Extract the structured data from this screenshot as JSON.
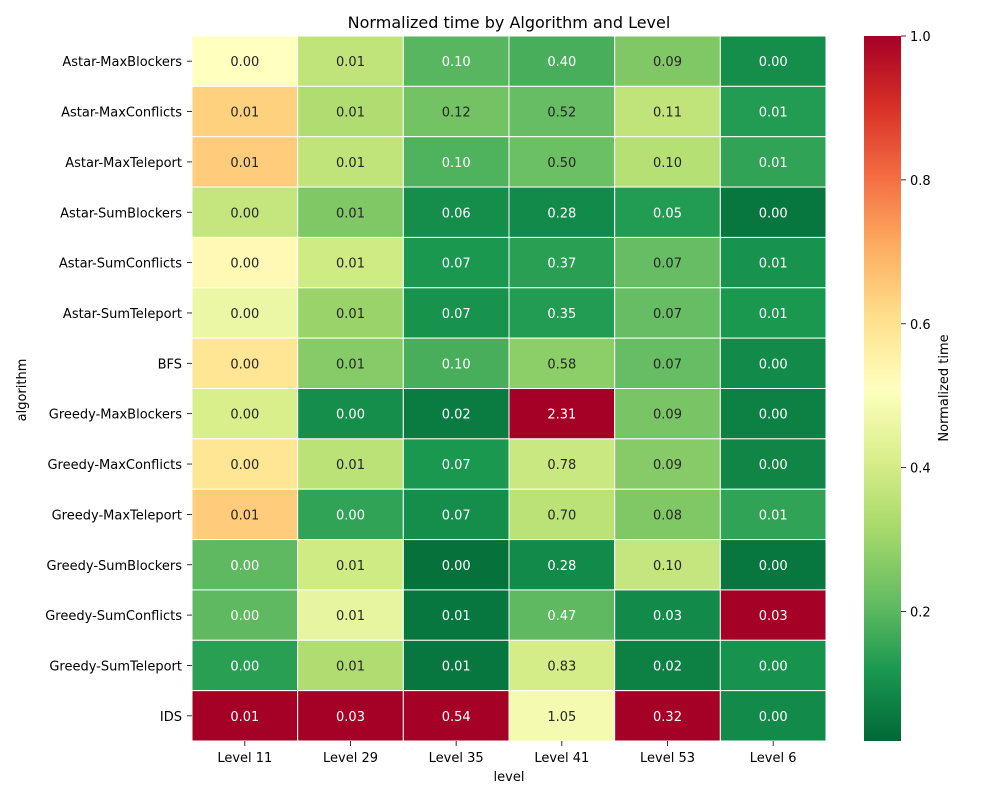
{
  "chart_data": {
    "type": "heatmap",
    "title": "Normalized time by Algorithm and Level",
    "xlabel": "level",
    "ylabel": "algorithm",
    "x_categories": [
      "Level 11",
      "Level 29",
      "Level 35",
      "Level 41",
      "Level 53",
      "Level 6"
    ],
    "y_categories": [
      "Astar-MaxBlockers",
      "Astar-MaxConflicts",
      "Astar-MaxTeleport",
      "Astar-SumBlockers",
      "Astar-SumConflicts",
      "Astar-SumTeleport",
      "BFS",
      "Greedy-MaxBlockers",
      "Greedy-MaxConflicts",
      "Greedy-MaxTeleport",
      "Greedy-SumBlockers",
      "Greedy-SumConflicts",
      "Greedy-SumTeleport",
      "IDS"
    ],
    "annotations": [
      [
        "0.00",
        "0.01",
        "0.10",
        "0.40",
        "0.09",
        "0.00"
      ],
      [
        "0.01",
        "0.01",
        "0.12",
        "0.52",
        "0.11",
        "0.01"
      ],
      [
        "0.01",
        "0.01",
        "0.10",
        "0.50",
        "0.10",
        "0.01"
      ],
      [
        "0.00",
        "0.01",
        "0.06",
        "0.28",
        "0.05",
        "0.00"
      ],
      [
        "0.00",
        "0.01",
        "0.07",
        "0.37",
        "0.07",
        "0.01"
      ],
      [
        "0.00",
        "0.01",
        "0.07",
        "0.35",
        "0.07",
        "0.01"
      ],
      [
        "0.00",
        "0.01",
        "0.10",
        "0.58",
        "0.07",
        "0.00"
      ],
      [
        "0.00",
        "0.00",
        "0.02",
        "2.31",
        "0.09",
        "0.00"
      ],
      [
        "0.00",
        "0.01",
        "0.07",
        "0.78",
        "0.09",
        "0.00"
      ],
      [
        "0.01",
        "0.00",
        "0.07",
        "0.70",
        "0.08",
        "0.01"
      ],
      [
        "0.00",
        "0.01",
        "0.00",
        "0.28",
        "0.10",
        "0.00"
      ],
      [
        "0.00",
        "0.01",
        "0.01",
        "0.47",
        "0.03",
        "0.03"
      ],
      [
        "0.00",
        "0.01",
        "0.01",
        "0.83",
        "0.02",
        "0.00"
      ],
      [
        "0.01",
        "0.03",
        "0.54",
        "1.05",
        "0.32",
        "0.00"
      ]
    ],
    "normalized_values": [
      [
        0.5,
        0.35,
        0.18,
        0.16,
        0.24,
        0.08
      ],
      [
        0.63,
        0.32,
        0.22,
        0.2,
        0.35,
        0.11
      ],
      [
        0.64,
        0.35,
        0.17,
        0.21,
        0.33,
        0.13
      ],
      [
        0.36,
        0.24,
        0.08,
        0.07,
        0.11,
        0.03
      ],
      [
        0.52,
        0.38,
        0.1,
        0.12,
        0.2,
        0.09
      ],
      [
        0.45,
        0.28,
        0.09,
        0.11,
        0.2,
        0.1
      ],
      [
        0.58,
        0.25,
        0.16,
        0.26,
        0.2,
        0.07
      ],
      [
        0.4,
        0.08,
        0.04,
        1.0,
        0.23,
        0.05
      ],
      [
        0.58,
        0.34,
        0.1,
        0.37,
        0.25,
        0.06
      ],
      [
        0.64,
        0.13,
        0.08,
        0.34,
        0.24,
        0.13
      ],
      [
        0.19,
        0.38,
        0.02,
        0.07,
        0.36,
        0.03
      ],
      [
        0.19,
        0.44,
        0.03,
        0.19,
        0.07,
        1.0
      ],
      [
        0.12,
        0.32,
        0.03,
        0.39,
        0.05,
        0.09
      ],
      [
        1.0,
        1.0,
        1.0,
        0.47,
        1.0,
        0.07
      ]
    ],
    "colormap": "RdYlGn (reversed)",
    "colorbar": {
      "label": "Normalized time",
      "range": [
        0.0,
        1.0
      ],
      "ticks": [
        "0.2",
        "0.4",
        "0.6",
        "0.8",
        "1.0"
      ]
    },
    "grid": "white cell borders",
    "legend": "colorbar right"
  }
}
